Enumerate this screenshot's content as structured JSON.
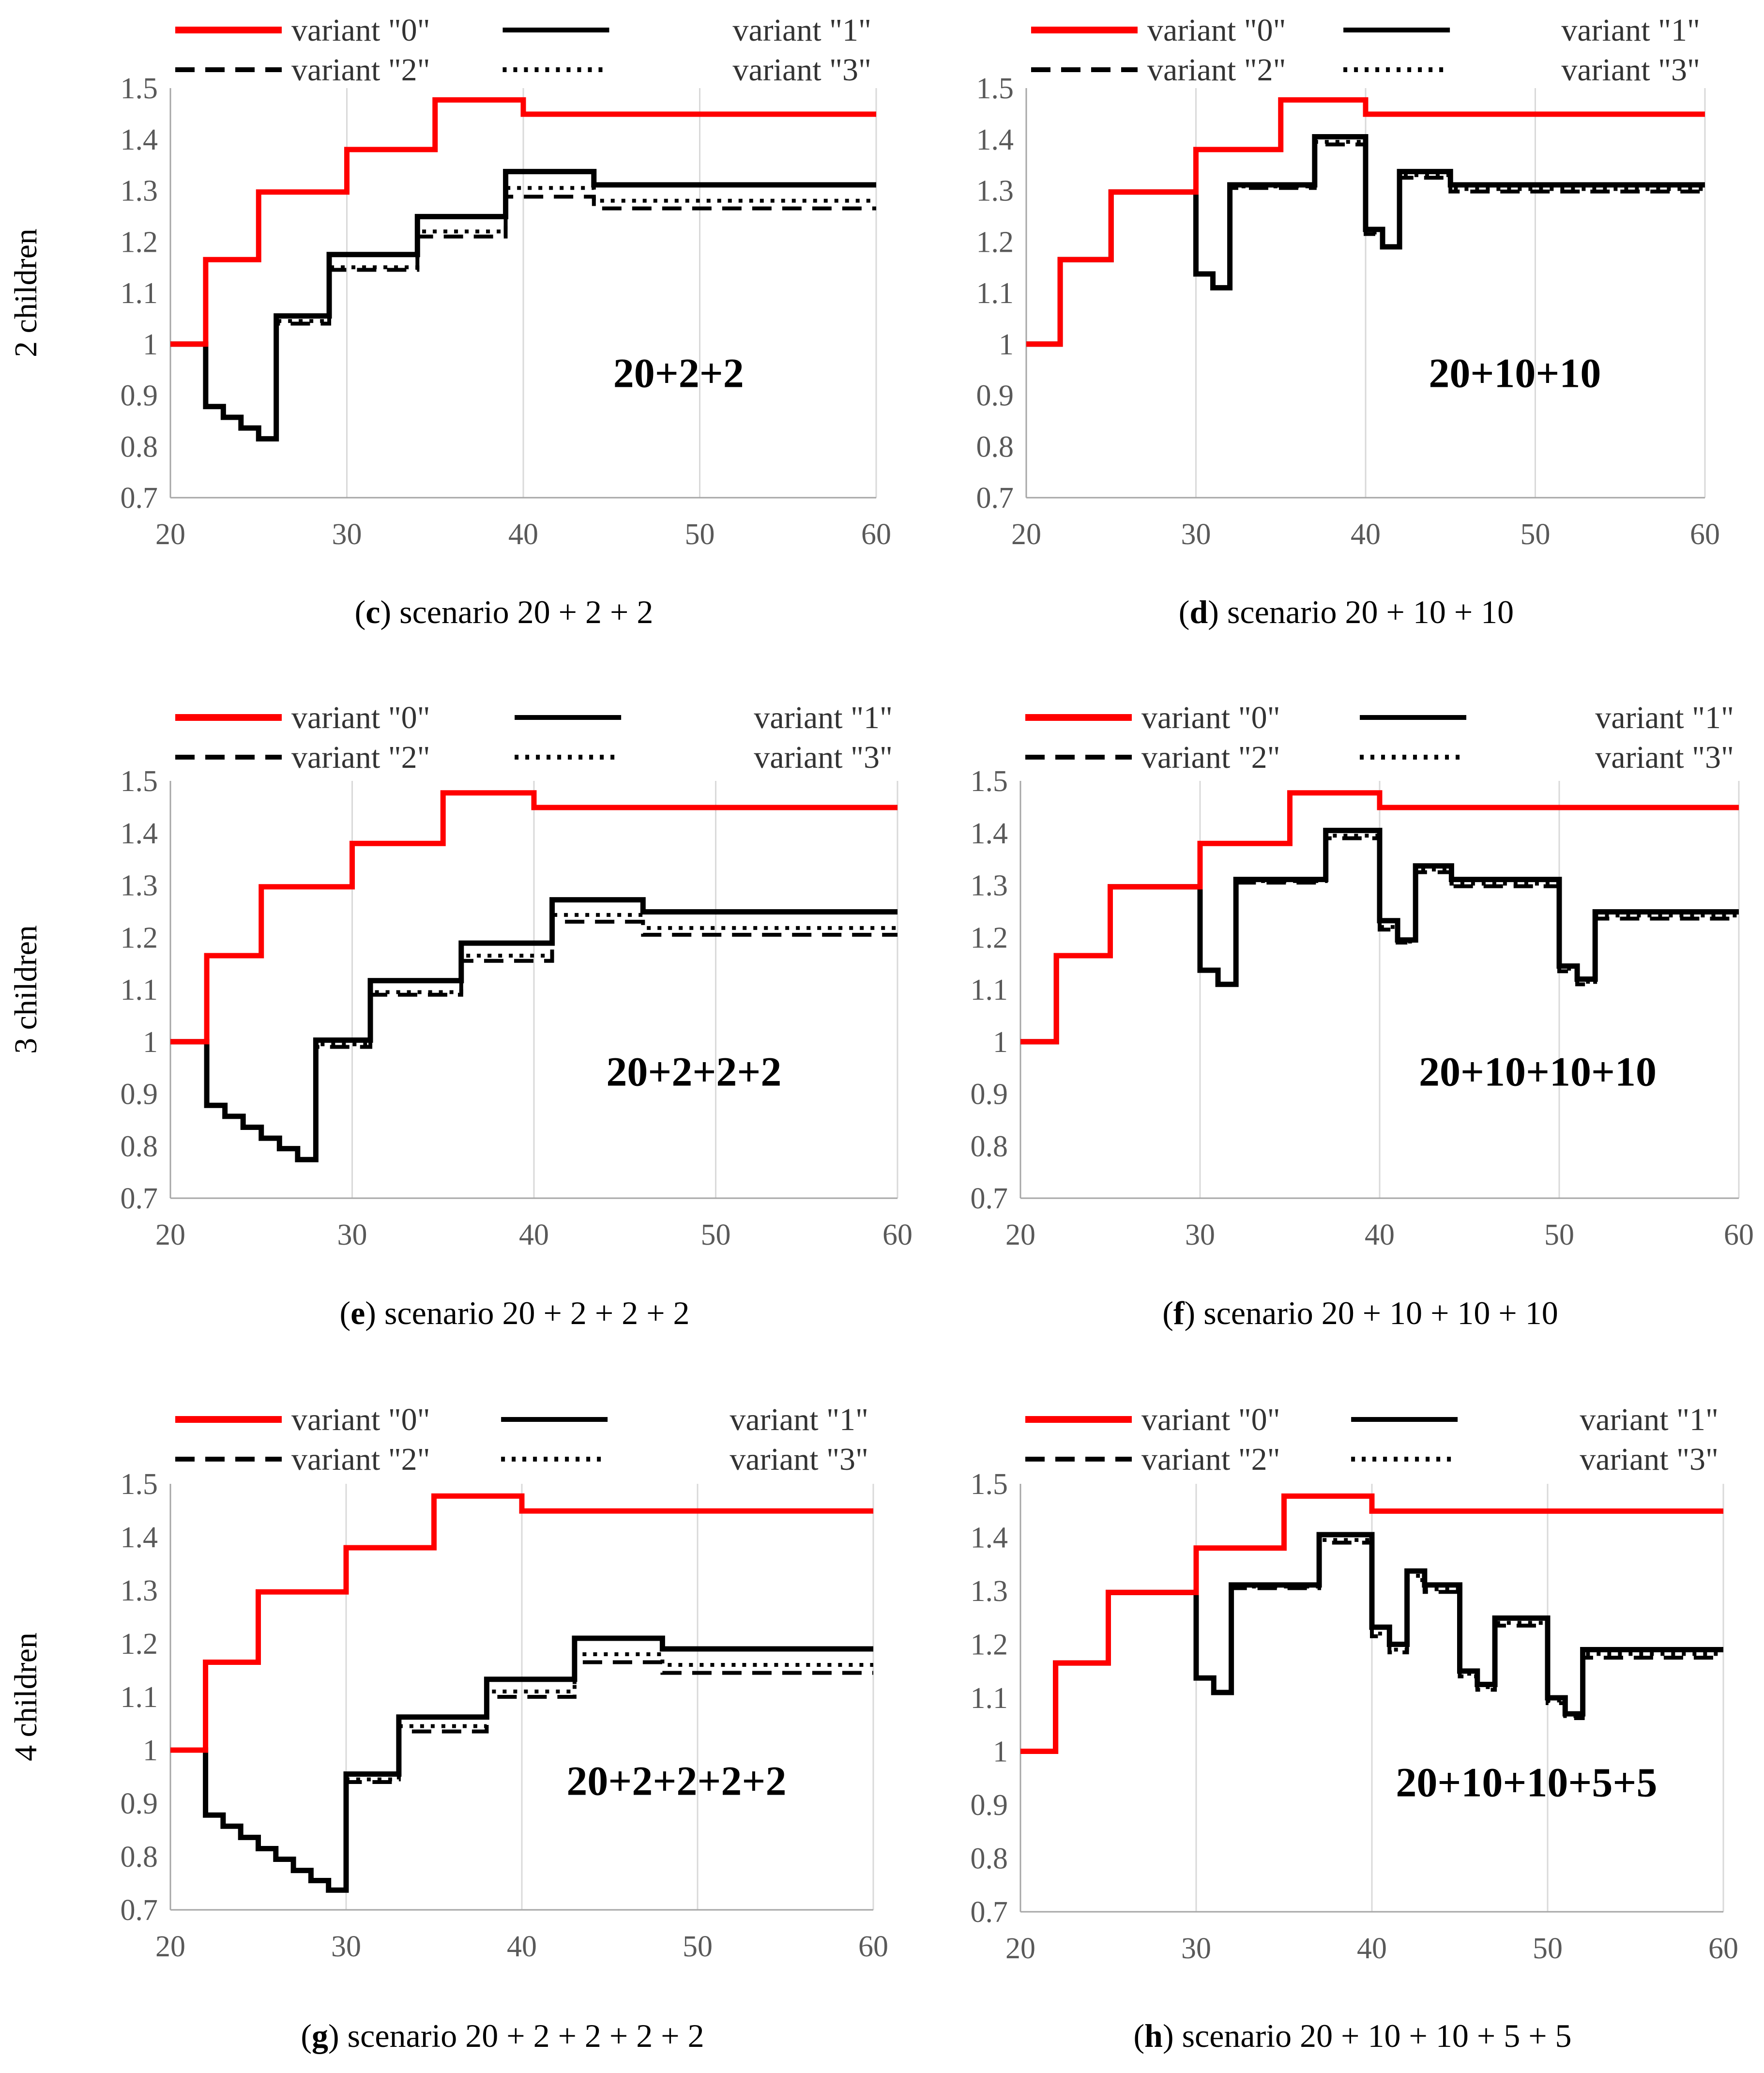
{
  "figure": {
    "row_labels": [
      "2 children",
      "3 children",
      "4 children"
    ]
  },
  "chart_data": [
    {
      "id": "c",
      "type": "line",
      "step": true,
      "caption_letter": "c",
      "caption_text": " scenario 20 + 2 + 2",
      "annotation": "20+2+2",
      "row_label": "2 children",
      "xlim": [
        20,
        60
      ],
      "ylim": [
        0.7,
        1.5
      ],
      "xticks": [
        20,
        30,
        40,
        50,
        60
      ],
      "yticks": [
        0.7,
        0.8,
        0.9,
        1,
        1.1,
        1.2,
        1.3,
        1.4,
        1.5
      ],
      "grid": "vertical",
      "legend": "top, two columns",
      "series": [
        {
          "name": "variant \"0\"",
          "color": "#ff0000",
          "style": "solid",
          "x": [
            20,
            22,
            25,
            30,
            35,
            40,
            60
          ],
          "y": [
            1.0,
            1.165,
            1.297,
            1.38,
            1.477,
            1.449,
            1.449
          ]
        },
        {
          "name": "variant \"1\"",
          "color": "#000000",
          "style": "solid",
          "x": [
            20,
            22,
            23,
            24,
            25,
            26,
            29,
            34,
            39,
            44,
            60
          ],
          "y": [
            1.0,
            0.878,
            0.857,
            0.836,
            0.815,
            1.055,
            1.175,
            1.249,
            1.337,
            1.311,
            1.311
          ]
        },
        {
          "name": "variant \"2\"",
          "color": "#000000",
          "style": "dashed",
          "x": [
            20,
            22,
            23,
            24,
            25,
            26,
            29,
            34,
            39,
            44,
            60
          ],
          "y": [
            1.0,
            0.878,
            0.857,
            0.836,
            0.815,
            1.04,
            1.145,
            1.21,
            1.288,
            1.265,
            1.265
          ]
        },
        {
          "name": "variant \"3\"",
          "color": "#000000",
          "style": "dotted",
          "x": [
            20,
            22,
            23,
            24,
            25,
            26,
            29,
            34,
            39,
            44,
            60
          ],
          "y": [
            1.0,
            0.878,
            0.857,
            0.836,
            0.815,
            1.045,
            1.15,
            1.22,
            1.305,
            1.28,
            1.28
          ]
        }
      ]
    },
    {
      "id": "d",
      "type": "line",
      "step": true,
      "caption_letter": "d",
      "caption_text": " scenario 20 + 10 + 10",
      "annotation": "20+10+10",
      "xlim": [
        20,
        60
      ],
      "ylim": [
        0.7,
        1.5
      ],
      "xticks": [
        20,
        30,
        40,
        50,
        60
      ],
      "yticks": [
        0.7,
        0.8,
        0.9,
        1,
        1.1,
        1.2,
        1.3,
        1.4,
        1.5
      ],
      "grid": "vertical",
      "legend": "top, two columns",
      "series": [
        {
          "name": "variant \"0\"",
          "color": "#ff0000",
          "style": "solid",
          "x": [
            20,
            22,
            25,
            30,
            35,
            40,
            60
          ],
          "y": [
            1.0,
            1.165,
            1.297,
            1.38,
            1.477,
            1.449,
            1.449
          ]
        },
        {
          "name": "variant \"1\"",
          "color": "#000000",
          "style": "solid",
          "x": [
            20,
            22,
            25,
            30,
            31,
            32,
            37,
            40,
            41,
            42,
            45,
            60
          ],
          "y": [
            1.0,
            1.165,
            1.297,
            1.137,
            1.11,
            1.311,
            1.405,
            1.224,
            1.19,
            1.337,
            1.311,
            1.311
          ]
        },
        {
          "name": "variant \"2\"",
          "color": "#000000",
          "style": "dashed",
          "x": [
            20,
            22,
            25,
            30,
            31,
            32,
            37,
            40,
            41,
            42,
            45,
            60
          ],
          "y": [
            1.0,
            1.165,
            1.297,
            1.137,
            1.11,
            1.305,
            1.39,
            1.215,
            1.19,
            1.325,
            1.298,
            1.298
          ]
        },
        {
          "name": "variant \"3\"",
          "color": "#000000",
          "style": "dotted",
          "x": [
            20,
            22,
            25,
            30,
            31,
            32,
            37,
            40,
            41,
            42,
            45,
            60
          ],
          "y": [
            1.0,
            1.165,
            1.297,
            1.137,
            1.11,
            1.308,
            1.395,
            1.218,
            1.19,
            1.33,
            1.303,
            1.303
          ]
        }
      ]
    },
    {
      "id": "e",
      "type": "line",
      "step": true,
      "caption_letter": "e",
      "caption_text": " scenario 20 + 2 + 2 + 2",
      "annotation": "20+2+2+2",
      "row_label": "3 children",
      "xlim": [
        20,
        60
      ],
      "ylim": [
        0.7,
        1.5
      ],
      "xticks": [
        20,
        30,
        40,
        50,
        60
      ],
      "yticks": [
        0.7,
        0.8,
        0.9,
        1,
        1.1,
        1.2,
        1.3,
        1.4,
        1.5
      ],
      "grid": "vertical",
      "legend": "top, two columns",
      "series": [
        {
          "name": "variant \"0\"",
          "color": "#ff0000",
          "style": "solid",
          "x": [
            20,
            22,
            25,
            30,
            35,
            40,
            60
          ],
          "y": [
            1.0,
            1.165,
            1.297,
            1.38,
            1.477,
            1.449,
            1.449
          ]
        },
        {
          "name": "variant \"1\"",
          "color": "#000000",
          "style": "solid",
          "x": [
            20,
            22,
            23,
            24,
            25,
            26,
            27,
            28,
            31,
            36,
            41,
            46,
            60
          ],
          "y": [
            1.0,
            0.878,
            0.857,
            0.836,
            0.815,
            0.795,
            0.774,
            1.003,
            1.117,
            1.189,
            1.272,
            1.249,
            1.249
          ]
        },
        {
          "name": "variant \"2\"",
          "color": "#000000",
          "style": "dashed",
          "x": [
            20,
            22,
            23,
            24,
            25,
            26,
            27,
            28,
            31,
            36,
            41,
            46,
            60
          ],
          "y": [
            1.0,
            0.878,
            0.857,
            0.836,
            0.815,
            0.795,
            0.774,
            0.99,
            1.09,
            1.155,
            1.23,
            1.205,
            1.205
          ]
        },
        {
          "name": "variant \"3\"",
          "color": "#000000",
          "style": "dotted",
          "x": [
            20,
            22,
            23,
            24,
            25,
            26,
            27,
            28,
            31,
            36,
            41,
            46,
            60
          ],
          "y": [
            1.0,
            0.878,
            0.857,
            0.836,
            0.815,
            0.795,
            0.774,
            0.995,
            1.095,
            1.165,
            1.243,
            1.218,
            1.218
          ]
        }
      ]
    },
    {
      "id": "f",
      "type": "line",
      "step": true,
      "caption_letter": "f",
      "caption_text": " scenario 20 + 10 + 10 + 10",
      "annotation": "20+10+10+10",
      "xlim": [
        20,
        60
      ],
      "ylim": [
        0.7,
        1.5
      ],
      "xticks": [
        20,
        30,
        40,
        50,
        60
      ],
      "yticks": [
        0.7,
        0.8,
        0.9,
        1,
        1.1,
        1.2,
        1.3,
        1.4,
        1.5
      ],
      "grid": "vertical",
      "legend": "top, two columns",
      "series": [
        {
          "name": "variant \"0\"",
          "color": "#ff0000",
          "style": "solid",
          "x": [
            20,
            22,
            25,
            30,
            35,
            40,
            60
          ],
          "y": [
            1.0,
            1.165,
            1.297,
            1.38,
            1.477,
            1.449,
            1.449
          ]
        },
        {
          "name": "variant \"1\"",
          "color": "#000000",
          "style": "solid",
          "x": [
            20,
            22,
            25,
            30,
            31,
            32,
            37,
            40,
            41,
            42,
            44,
            50,
            51,
            52,
            60
          ],
          "y": [
            1.0,
            1.165,
            1.297,
            1.137,
            1.11,
            1.311,
            1.405,
            1.232,
            1.195,
            1.337,
            1.311,
            1.145,
            1.12,
            1.249,
            1.249
          ]
        },
        {
          "name": "variant \"2\"",
          "color": "#000000",
          "style": "dashed",
          "x": [
            20,
            22,
            25,
            30,
            31,
            32,
            37,
            40,
            41,
            42,
            44,
            50,
            51,
            52,
            60
          ],
          "y": [
            1.0,
            1.165,
            1.297,
            1.137,
            1.11,
            1.305,
            1.39,
            1.215,
            1.19,
            1.325,
            1.298,
            1.135,
            1.11,
            1.236,
            1.236
          ]
        },
        {
          "name": "variant \"3\"",
          "color": "#000000",
          "style": "dotted",
          "x": [
            20,
            22,
            25,
            30,
            31,
            32,
            37,
            40,
            41,
            42,
            44,
            50,
            51,
            52,
            60
          ],
          "y": [
            1.0,
            1.165,
            1.297,
            1.137,
            1.11,
            1.308,
            1.395,
            1.22,
            1.192,
            1.33,
            1.303,
            1.14,
            1.115,
            1.242,
            1.242
          ]
        }
      ]
    },
    {
      "id": "g",
      "type": "line",
      "step": true,
      "caption_letter": "g",
      "caption_text": " scenario 20 + 2 + 2 + 2 + 2",
      "annotation": "20+2+2+2+2",
      "row_label": "4 children",
      "xlim": [
        20,
        60
      ],
      "ylim": [
        0.7,
        1.5
      ],
      "xticks": [
        20,
        30,
        40,
        50,
        60
      ],
      "yticks": [
        0.7,
        0.8,
        0.9,
        1,
        1.1,
        1.2,
        1.3,
        1.4,
        1.5
      ],
      "grid": "vertical",
      "legend": "top, two columns",
      "series": [
        {
          "name": "variant \"0\"",
          "color": "#ff0000",
          "style": "solid",
          "x": [
            20,
            22,
            25,
            30,
            35,
            40,
            60
          ],
          "y": [
            1.0,
            1.165,
            1.297,
            1.38,
            1.477,
            1.449,
            1.449
          ]
        },
        {
          "name": "variant \"1\"",
          "color": "#000000",
          "style": "solid",
          "x": [
            20,
            22,
            23,
            24,
            25,
            26,
            27,
            28,
            29,
            30,
            33,
            38,
            43,
            48,
            60
          ],
          "y": [
            1.0,
            0.878,
            0.857,
            0.836,
            0.815,
            0.795,
            0.774,
            0.755,
            0.737,
            0.955,
            1.062,
            1.133,
            1.21,
            1.19,
            1.19
          ]
        },
        {
          "name": "variant \"2\"",
          "color": "#000000",
          "style": "dashed",
          "x": [
            20,
            22,
            23,
            24,
            25,
            26,
            27,
            28,
            29,
            30,
            33,
            38,
            43,
            48,
            60
          ],
          "y": [
            1.0,
            0.878,
            0.857,
            0.836,
            0.815,
            0.795,
            0.774,
            0.755,
            0.737,
            0.94,
            1.035,
            1.1,
            1.165,
            1.145,
            1.145
          ]
        },
        {
          "name": "variant \"3\"",
          "color": "#000000",
          "style": "dotted",
          "x": [
            20,
            22,
            23,
            24,
            25,
            26,
            27,
            28,
            29,
            30,
            33,
            38,
            43,
            48,
            60
          ],
          "y": [
            1.0,
            0.878,
            0.857,
            0.836,
            0.815,
            0.795,
            0.774,
            0.755,
            0.737,
            0.945,
            1.045,
            1.11,
            1.18,
            1.16,
            1.16
          ]
        }
      ]
    },
    {
      "id": "h",
      "type": "line",
      "step": true,
      "caption_letter": "h",
      "caption_text": " scenario 20 + 10 + 10 + 5 + 5",
      "annotation": "20+10+10+5+5",
      "xlim": [
        20,
        60
      ],
      "ylim": [
        0.7,
        1.5
      ],
      "xticks": [
        20,
        30,
        40,
        50,
        60
      ],
      "yticks": [
        0.7,
        0.8,
        0.9,
        1,
        1.1,
        1.2,
        1.3,
        1.4,
        1.5
      ],
      "grid": "vertical",
      "legend": "top, two columns",
      "series": [
        {
          "name": "variant \"0\"",
          "color": "#ff0000",
          "style": "solid",
          "x": [
            20,
            22,
            25,
            30,
            35,
            40,
            60
          ],
          "y": [
            1.0,
            1.165,
            1.297,
            1.38,
            1.477,
            1.449,
            1.449
          ]
        },
        {
          "name": "variant \"1\"",
          "color": "#000000",
          "style": "solid",
          "x": [
            20,
            22,
            25,
            30,
            31,
            32,
            37,
            40,
            41,
            42,
            43,
            45,
            46,
            47,
            48,
            50,
            51,
            52,
            60
          ],
          "y": [
            1.0,
            1.165,
            1.297,
            1.137,
            1.11,
            1.311,
            1.405,
            1.232,
            1.2,
            1.337,
            1.311,
            1.15,
            1.125,
            1.249,
            1.249,
            1.1,
            1.07,
            1.19,
            1.19
          ]
        },
        {
          "name": "variant \"2\"",
          "color": "#000000",
          "style": "dashed",
          "x": [
            20,
            22,
            25,
            30,
            31,
            32,
            37,
            40,
            41,
            42,
            43,
            45,
            46,
            47,
            48,
            50,
            51,
            52,
            60
          ],
          "y": [
            1.0,
            1.165,
            1.297,
            1.137,
            1.11,
            1.305,
            1.39,
            1.215,
            1.185,
            1.32,
            1.298,
            1.14,
            1.115,
            1.235,
            1.235,
            1.09,
            1.062,
            1.175,
            1.175
          ]
        },
        {
          "name": "variant \"3\"",
          "color": "#000000",
          "style": "dotted",
          "x": [
            20,
            22,
            25,
            30,
            31,
            32,
            37,
            40,
            41,
            42,
            43,
            45,
            46,
            47,
            48,
            50,
            51,
            52,
            60
          ],
          "y": [
            1.0,
            1.165,
            1.297,
            1.137,
            1.11,
            1.308,
            1.395,
            1.22,
            1.19,
            1.328,
            1.303,
            1.145,
            1.12,
            1.24,
            1.24,
            1.095,
            1.066,
            1.182,
            1.182
          ]
        }
      ]
    }
  ]
}
